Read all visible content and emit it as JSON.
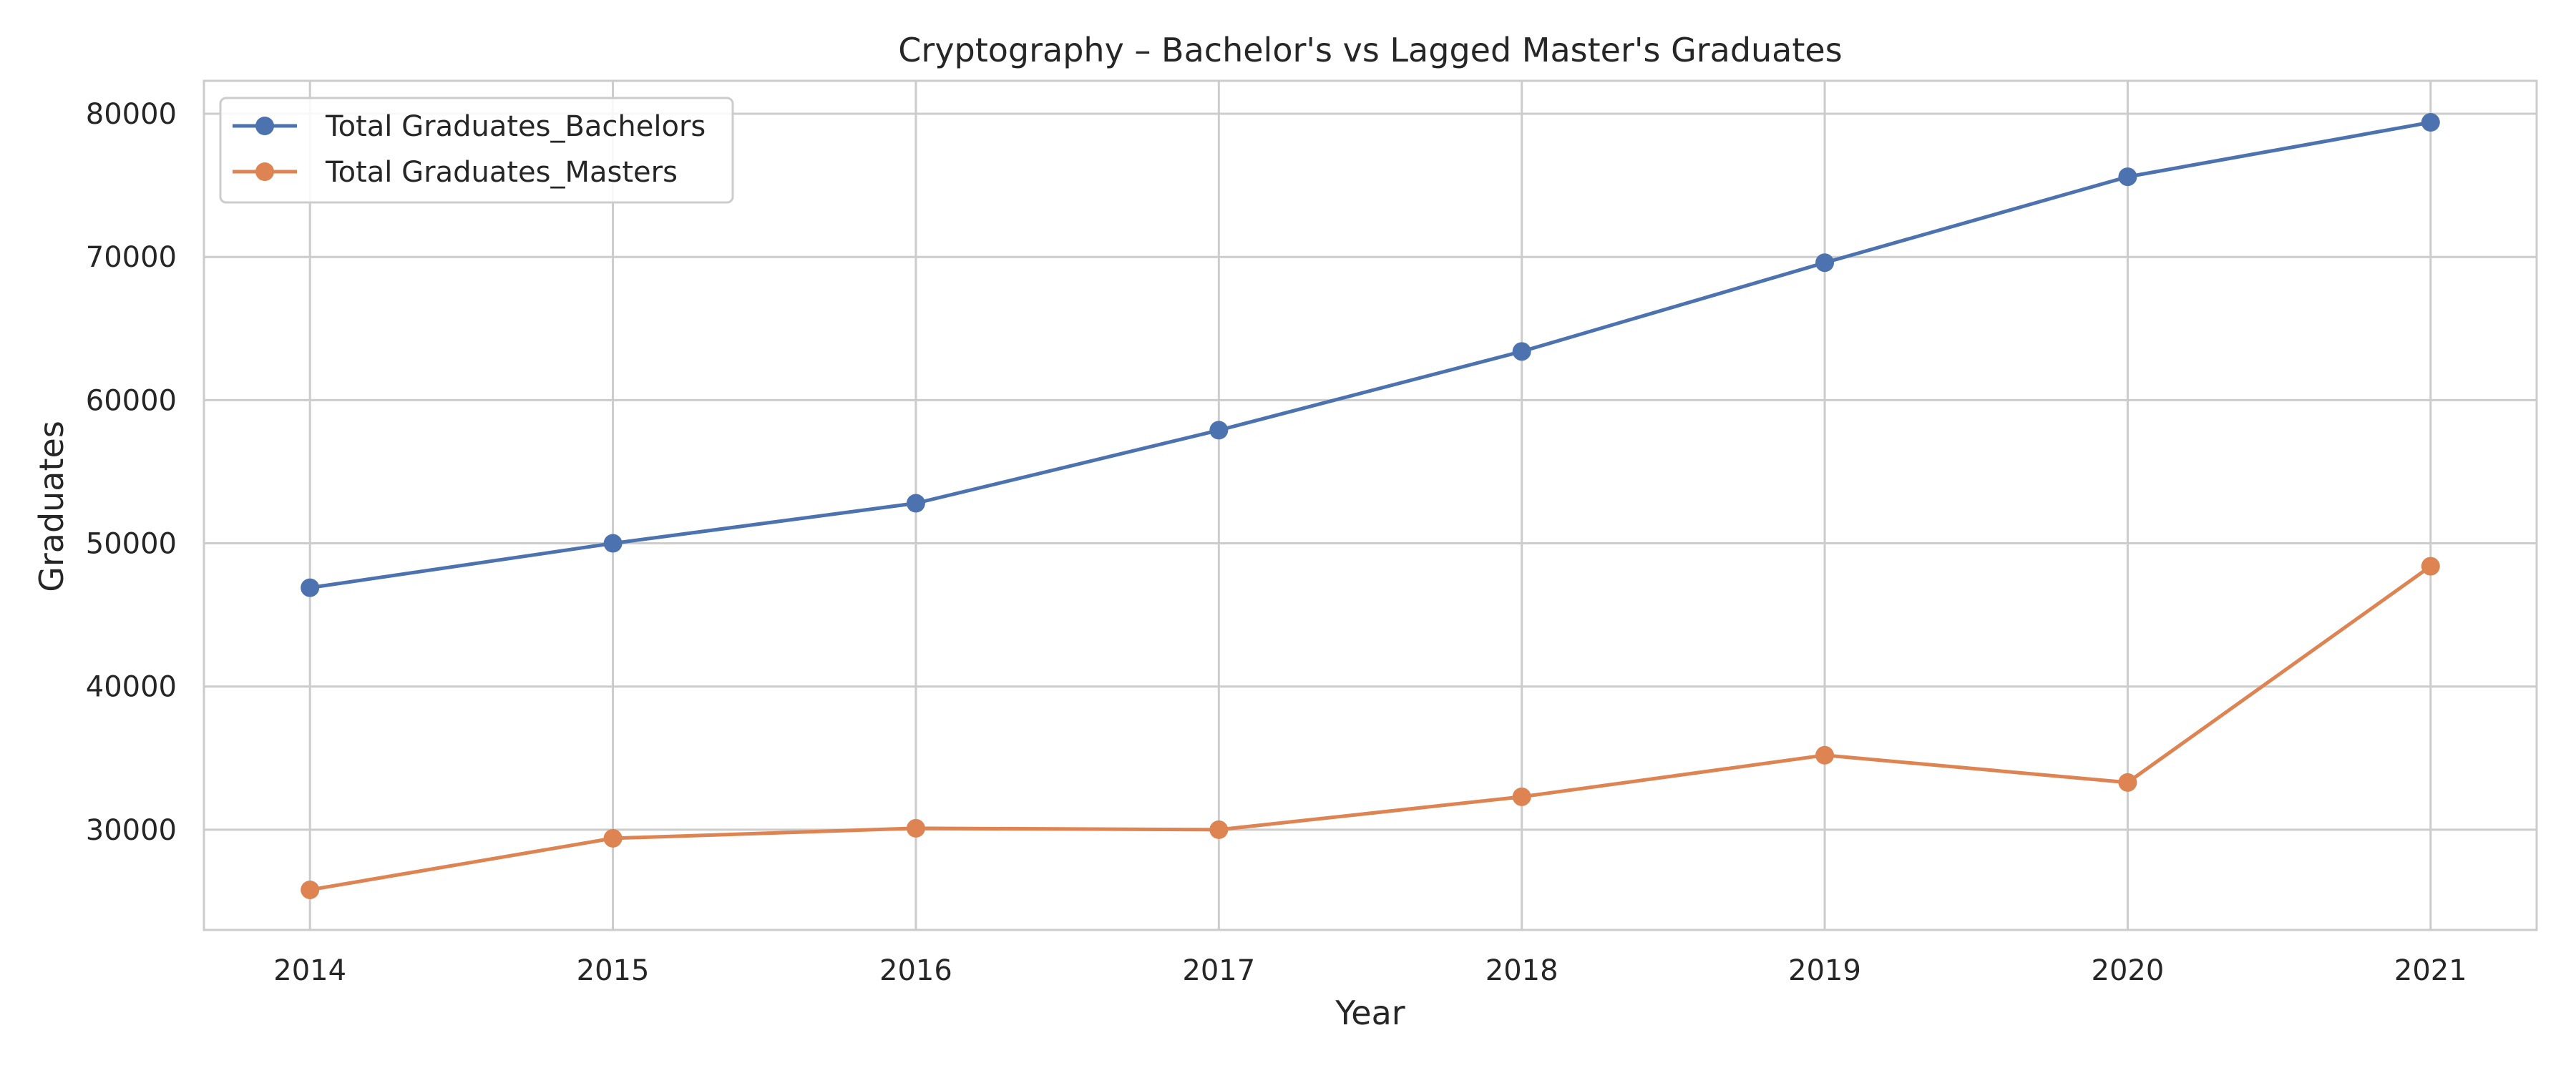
{
  "chart_data": {
    "type": "line",
    "title": "Cryptography – Bachelor's vs Lagged Master's Graduates",
    "xlabel": "Year",
    "ylabel": "Graduates",
    "x": [
      2014,
      2015,
      2016,
      2017,
      2018,
      2019,
      2020,
      2021
    ],
    "xticks": [
      "2014",
      "2015",
      "2016",
      "2017",
      "2018",
      "2019",
      "2020",
      "2021"
    ],
    "yticks": [
      30000,
      40000,
      50000,
      60000,
      70000,
      80000
    ],
    "ylim": [
      23000,
      82300
    ],
    "xlim": [
      2013.65,
      2021.35
    ],
    "grid": true,
    "legend_position": "top-left",
    "series": [
      {
        "name": "Total Graduates_Bachelors",
        "color": "#4c72b0",
        "values": [
          46900,
          50000,
          52800,
          57900,
          63400,
          69600,
          75600,
          79400
        ]
      },
      {
        "name": "Total Graduates_Masters",
        "color": "#dd8452",
        "values": [
          25800,
          29400,
          30100,
          30000,
          32300,
          35200,
          33300,
          48400
        ]
      }
    ]
  }
}
